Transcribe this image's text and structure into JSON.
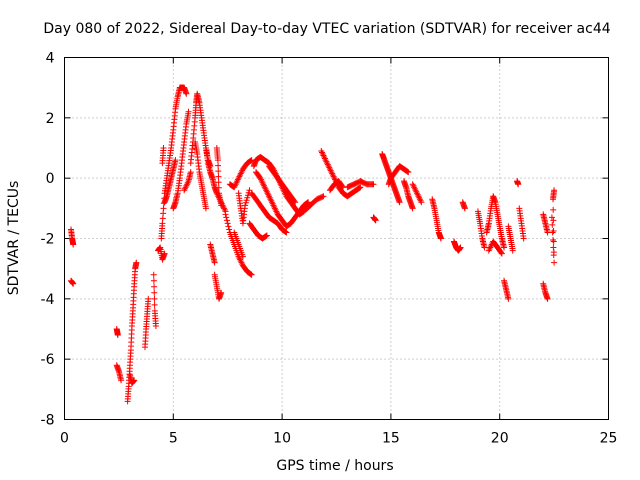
{
  "chart_data": {
    "type": "scatter",
    "title": "Day 080 of 2022, Sidereal Day-to-day VTEC variation (SDTVAR) for receiver ac44",
    "xlabel": "GPS time / hours",
    "ylabel": "SDTVAR / TECUs",
    "xlim": [
      0,
      25
    ],
    "ylim": [
      -8,
      4
    ],
    "xticks": [
      "0",
      "5",
      "10",
      "15",
      "20",
      "25"
    ],
    "yticks": [
      "-8",
      "-6",
      "-4",
      "-2",
      "0",
      "2",
      "4"
    ],
    "grid": true,
    "marker": "plus",
    "color": "#ff0000",
    "series": [
      {
        "name": "SDTVAR",
        "segments": [
          [
            [
              0.3,
              -1.7
            ],
            [
              0.35,
              -2.0
            ],
            [
              0.4,
              -2.2
            ]
          ],
          [
            [
              0.3,
              -3.4
            ],
            [
              0.4,
              -3.5
            ]
          ],
          [
            [
              2.4,
              -5.0
            ],
            [
              2.45,
              -5.2
            ]
          ],
          [
            [
              2.4,
              -6.2
            ],
            [
              2.5,
              -6.4
            ],
            [
              2.6,
              -6.7
            ]
          ],
          [
            [
              2.9,
              -7.4
            ],
            [
              2.95,
              -6.9
            ],
            [
              3.0,
              -6.3
            ],
            [
              3.05,
              -5.7
            ],
            [
              3.1,
              -4.9
            ],
            [
              3.15,
              -4.3
            ],
            [
              3.2,
              -3.6
            ],
            [
              3.25,
              -3.0
            ],
            [
              3.3,
              -2.8
            ]
          ],
          [
            [
              3.0,
              -6.5
            ],
            [
              3.1,
              -6.8
            ],
            [
              3.2,
              -6.7
            ]
          ],
          [
            [
              3.7,
              -5.6
            ],
            [
              3.75,
              -5.0
            ],
            [
              3.8,
              -4.5
            ],
            [
              3.85,
              -4.0
            ]
          ],
          [
            [
              4.1,
              -3.2
            ],
            [
              4.15,
              -4.4
            ],
            [
              4.2,
              -4.9
            ]
          ],
          [
            [
              4.3,
              -2.4
            ],
            [
              4.4,
              -2.3
            ],
            [
              4.5,
              -2.7
            ],
            [
              4.6,
              -2.5
            ]
          ],
          [
            [
              4.45,
              -2.0
            ],
            [
              4.5,
              -1.5
            ],
            [
              4.6,
              -0.5
            ],
            [
              4.7,
              0.0
            ],
            [
              4.8,
              0.5
            ],
            [
              4.9,
              1.0
            ],
            [
              5.0,
              1.6
            ],
            [
              5.1,
              2.3
            ],
            [
              5.2,
              2.7
            ],
            [
              5.3,
              3.0
            ],
            [
              5.4,
              3.0
            ],
            [
              5.5,
              3.0
            ],
            [
              5.6,
              2.8
            ]
          ],
          [
            [
              4.5,
              0.5
            ],
            [
              4.55,
              1.0
            ]
          ],
          [
            [
              4.6,
              -0.8
            ],
            [
              4.7,
              -0.6
            ],
            [
              4.8,
              -0.3
            ],
            [
              4.9,
              0.0
            ],
            [
              5.0,
              0.3
            ],
            [
              5.1,
              0.6
            ]
          ],
          [
            [
              5.0,
              -1.0
            ],
            [
              5.1,
              -0.8
            ],
            [
              5.2,
              -0.5
            ],
            [
              5.3,
              0.0
            ],
            [
              5.4,
              0.6
            ],
            [
              5.5,
              1.2
            ],
            [
              5.6,
              1.8
            ],
            [
              5.7,
              2.2
            ]
          ],
          [
            [
              5.5,
              -0.4
            ],
            [
              5.7,
              -0.1
            ],
            [
              5.8,
              0.2
            ]
          ],
          [
            [
              5.8,
              0.5
            ],
            [
              5.9,
              1.2
            ],
            [
              6.0,
              2.0
            ],
            [
              6.05,
              2.5
            ],
            [
              6.1,
              2.8
            ],
            [
              6.2,
              2.5
            ],
            [
              6.3,
              2.0
            ],
            [
              6.4,
              1.5
            ],
            [
              6.5,
              1.0
            ],
            [
              6.6,
              0.5
            ],
            [
              6.7,
              0.2
            ],
            [
              6.8,
              0.0
            ],
            [
              6.9,
              -0.3
            ],
            [
              7.0,
              -0.5
            ],
            [
              7.2,
              -0.8
            ],
            [
              7.4,
              -1.1
            ]
          ],
          [
            [
              6.0,
              1.2
            ],
            [
              6.1,
              0.8
            ],
            [
              6.2,
              0.2
            ],
            [
              6.3,
              -0.2
            ],
            [
              6.4,
              -0.6
            ],
            [
              6.5,
              -1.0
            ]
          ],
          [
            [
              6.5,
              1.0
            ],
            [
              6.6,
              0.6
            ],
            [
              6.7,
              0.4
            ]
          ],
          [
            [
              6.7,
              -2.2
            ],
            [
              6.8,
              -2.5
            ],
            [
              6.9,
              -2.8
            ]
          ],
          [
            [
              6.9,
              -3.2
            ],
            [
              7.0,
              -3.6
            ],
            [
              7.1,
              -4.0
            ],
            [
              7.2,
              -3.8
            ]
          ],
          [
            [
              7.0,
              1.0
            ],
            [
              7.05,
              0.6
            ],
            [
              7.1,
              -0.5
            ],
            [
              7.2,
              -0.9
            ]
          ],
          [
            [
              7.4,
              -1.2
            ],
            [
              7.6,
              -1.8
            ],
            [
              7.8,
              -2.2
            ],
            [
              8.0,
              -2.6
            ],
            [
              8.2,
              -2.9
            ],
            [
              8.4,
              -3.1
            ],
            [
              8.6,
              -3.2
            ]
          ],
          [
            [
              7.6,
              -0.2
            ],
            [
              7.8,
              -0.3
            ],
            [
              8.0,
              0.0
            ],
            [
              8.2,
              0.3
            ],
            [
              8.4,
              0.5
            ],
            [
              8.6,
              0.6
            ]
          ],
          [
            [
              7.8,
              -1.8
            ],
            [
              8.0,
              -2.2
            ],
            [
              8.2,
              -2.6
            ]
          ],
          [
            [
              8.0,
              -0.5
            ],
            [
              8.1,
              -1.0
            ],
            [
              8.2,
              -1.5
            ],
            [
              8.3,
              -0.9
            ],
            [
              8.5,
              -0.4
            ]
          ],
          [
            [
              8.7,
              0.4
            ],
            [
              8.8,
              0.6
            ],
            [
              9.0,
              0.7
            ],
            [
              9.2,
              0.6
            ],
            [
              9.4,
              0.5
            ],
            [
              9.6,
              0.3
            ],
            [
              9.8,
              0.0
            ],
            [
              10.0,
              -0.3
            ],
            [
              10.2,
              -0.6
            ],
            [
              10.4,
              -0.8
            ],
            [
              10.6,
              -1.0
            ],
            [
              10.8,
              -1.2
            ],
            [
              11.0,
              -1.1
            ],
            [
              11.3,
              -0.9
            ],
            [
              11.6,
              -0.7
            ],
            [
              11.9,
              -0.6
            ]
          ],
          [
            [
              8.8,
              0.2
            ],
            [
              9.0,
              0.0
            ],
            [
              9.2,
              -0.3
            ],
            [
              9.4,
              -0.6
            ],
            [
              9.6,
              -0.9
            ],
            [
              9.8,
              -1.2
            ],
            [
              10.0,
              -1.4
            ],
            [
              10.2,
              -1.6
            ],
            [
              10.4,
              -1.5
            ],
            [
              10.6,
              -1.3
            ],
            [
              10.8,
              -1.1
            ],
            [
              11.0,
              -0.9
            ],
            [
              11.2,
              -0.8
            ]
          ],
          [
            [
              8.6,
              -0.5
            ],
            [
              8.8,
              -0.7
            ],
            [
              9.0,
              -0.9
            ],
            [
              9.2,
              -1.1
            ],
            [
              9.4,
              -1.3
            ],
            [
              9.6,
              -1.4
            ],
            [
              9.8,
              -1.5
            ],
            [
              10.0,
              -1.7
            ],
            [
              10.2,
              -1.8
            ]
          ],
          [
            [
              8.5,
              -1.5
            ],
            [
              8.7,
              -1.7
            ],
            [
              8.9,
              -1.9
            ],
            [
              9.1,
              -2.0
            ],
            [
              9.3,
              -1.9
            ]
          ],
          [
            [
              9.4,
              0.4
            ],
            [
              9.6,
              0.2
            ],
            [
              9.8,
              0.0
            ],
            [
              10.0,
              -0.2
            ],
            [
              10.2,
              -0.4
            ],
            [
              10.4,
              -0.6
            ],
            [
              10.6,
              -0.8
            ]
          ],
          [
            [
              11.8,
              0.9
            ],
            [
              12.0,
              0.6
            ],
            [
              12.2,
              0.3
            ],
            [
              12.4,
              0.0
            ],
            [
              12.6,
              -0.3
            ],
            [
              12.8,
              -0.5
            ],
            [
              13.0,
              -0.6
            ],
            [
              13.2,
              -0.5
            ],
            [
              13.4,
              -0.4
            ],
            [
              13.6,
              -0.3
            ]
          ],
          [
            [
              12.2,
              -0.4
            ],
            [
              12.4,
              -0.2
            ],
            [
              12.6,
              -0.1
            ],
            [
              12.8,
              -0.3
            ]
          ],
          [
            [
              13.0,
              -0.3
            ],
            [
              13.3,
              -0.2
            ],
            [
              13.6,
              -0.1
            ],
            [
              13.9,
              -0.2
            ],
            [
              14.2,
              -0.2
            ]
          ],
          [
            [
              14.2,
              -1.3
            ],
            [
              14.3,
              -1.4
            ]
          ],
          [
            [
              14.6,
              0.8
            ],
            [
              14.7,
              0.6
            ],
            [
              14.8,
              0.4
            ],
            [
              14.9,
              0.2
            ],
            [
              15.0,
              0.0
            ],
            [
              15.1,
              -0.2
            ],
            [
              15.2,
              -0.4
            ],
            [
              15.3,
              -0.6
            ],
            [
              15.4,
              -0.8
            ]
          ],
          [
            [
              14.9,
              -0.2
            ],
            [
              15.0,
              0.0
            ],
            [
              15.2,
              0.2
            ],
            [
              15.4,
              0.4
            ],
            [
              15.6,
              0.3
            ],
            [
              15.8,
              0.2
            ]
          ],
          [
            [
              15.6,
              -0.1
            ],
            [
              15.7,
              -0.3
            ],
            [
              15.8,
              -0.6
            ],
            [
              15.9,
              -0.8
            ],
            [
              16.0,
              -1.0
            ]
          ],
          [
            [
              16.0,
              -0.2
            ],
            [
              16.2,
              -0.5
            ],
            [
              16.4,
              -0.8
            ]
          ],
          [
            [
              16.9,
              -0.7
            ],
            [
              17.0,
              -1.0
            ],
            [
              17.1,
              -1.4
            ],
            [
              17.2,
              -1.8
            ],
            [
              17.3,
              -2.0
            ]
          ],
          [
            [
              17.9,
              -2.1
            ],
            [
              18.0,
              -2.3
            ],
            [
              18.1,
              -2.4
            ],
            [
              18.2,
              -2.3
            ]
          ],
          [
            [
              18.3,
              -0.8
            ],
            [
              18.4,
              -1.0
            ]
          ],
          [
            [
              19.0,
              -1.1
            ],
            [
              19.1,
              -1.5
            ],
            [
              19.2,
              -2.0
            ],
            [
              19.3,
              -2.3
            ]
          ],
          [
            [
              19.4,
              -1.8
            ],
            [
              19.5,
              -1.5
            ],
            [
              19.6,
              -1.0
            ],
            [
              19.7,
              -0.6
            ],
            [
              19.8,
              -0.8
            ],
            [
              19.9,
              -1.2
            ],
            [
              20.0,
              -1.6
            ],
            [
              20.1,
              -2.0
            ],
            [
              20.2,
              -2.3
            ]
          ],
          [
            [
              19.5,
              -2.4
            ],
            [
              19.7,
              -2.1
            ],
            [
              19.9,
              -2.3
            ],
            [
              20.1,
              -2.5
            ]
          ],
          [
            [
              20.2,
              -3.4
            ],
            [
              20.3,
              -3.7
            ],
            [
              20.4,
              -4.0
            ]
          ],
          [
            [
              20.4,
              -1.6
            ],
            [
              20.5,
              -2.0
            ],
            [
              20.6,
              -2.4
            ]
          ],
          [
            [
              20.8,
              -0.1
            ],
            [
              20.85,
              -0.2
            ]
          ],
          [
            [
              20.9,
              -1.0
            ],
            [
              21.0,
              -1.5
            ],
            [
              21.1,
              -2.0
            ]
          ],
          [
            [
              22.0,
              -1.2
            ],
            [
              22.1,
              -1.5
            ],
            [
              22.2,
              -1.8
            ]
          ],
          [
            [
              22.0,
              -3.5
            ],
            [
              22.1,
              -3.8
            ],
            [
              22.2,
              -4.0
            ]
          ],
          [
            [
              22.4,
              -1.3
            ],
            [
              22.5,
              -2.8
            ],
            [
              22.45,
              -0.7
            ],
            [
              22.5,
              -0.4
            ]
          ]
        ]
      }
    ]
  }
}
